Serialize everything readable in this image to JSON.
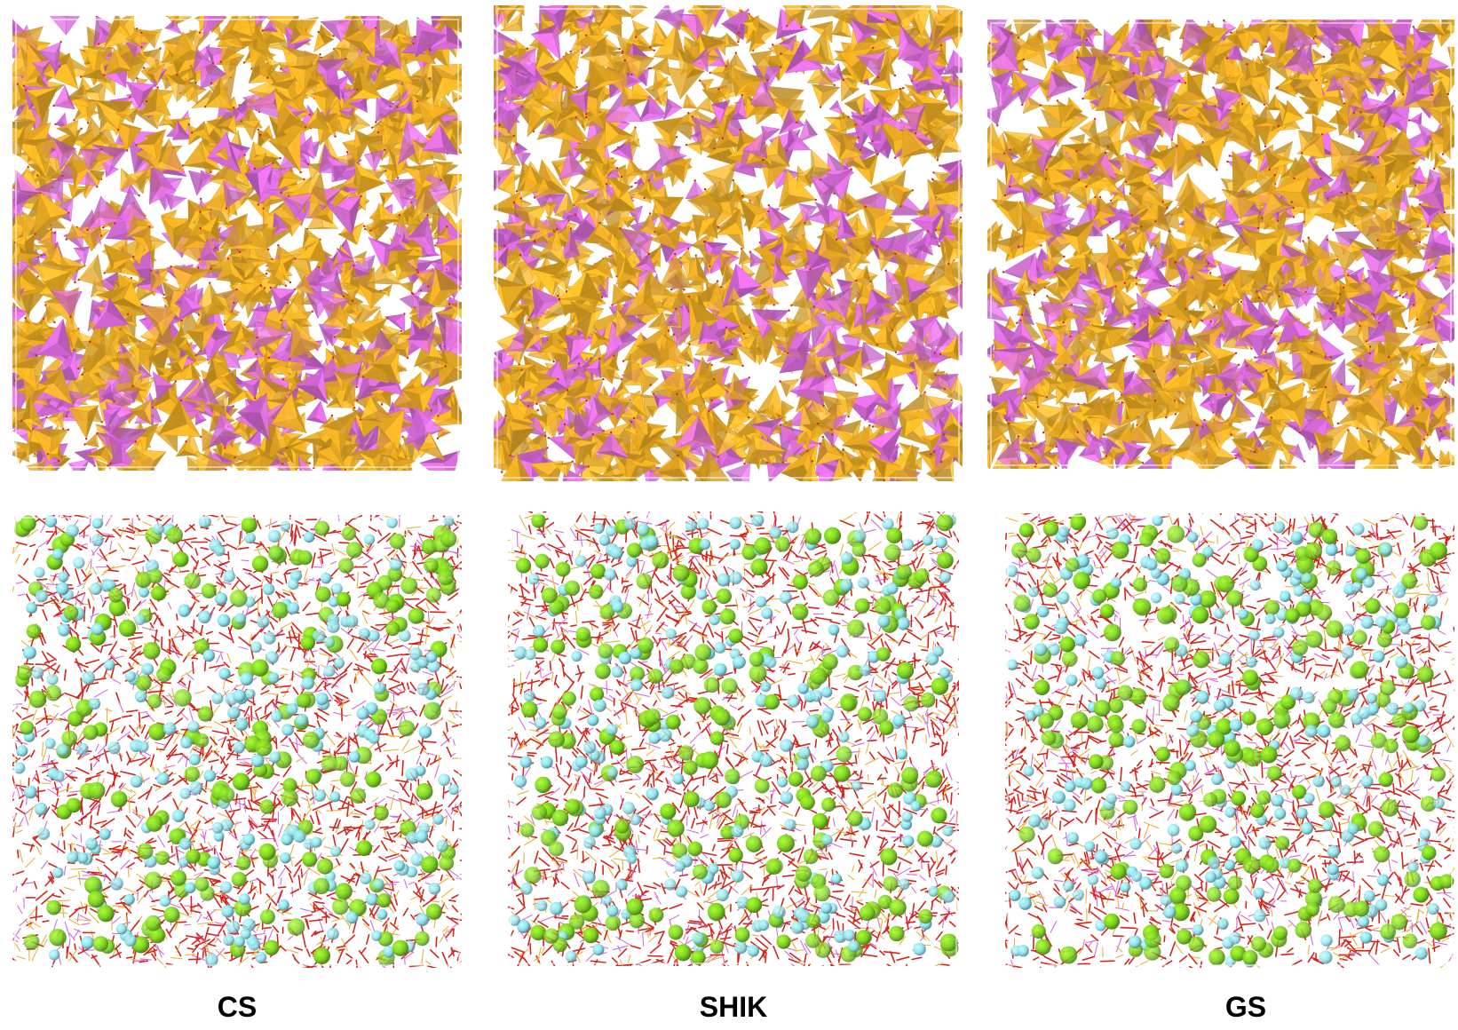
{
  "figure": {
    "columns": [
      {
        "label": "CS"
      },
      {
        "label": "SHIK"
      },
      {
        "label": "GS"
      }
    ],
    "polyhedra_colors": {
      "tetrahedron_a": "#F5B324",
      "tetrahedron_b": "#E06DE3"
    },
    "atom_colors": {
      "sphere_green": "#7ED321",
      "sphere_cyan": "#8EE3EE",
      "bond_red": "#D4261C",
      "bond_gold": "#E8B23A",
      "bond_pink": "#D46CD6"
    }
  }
}
